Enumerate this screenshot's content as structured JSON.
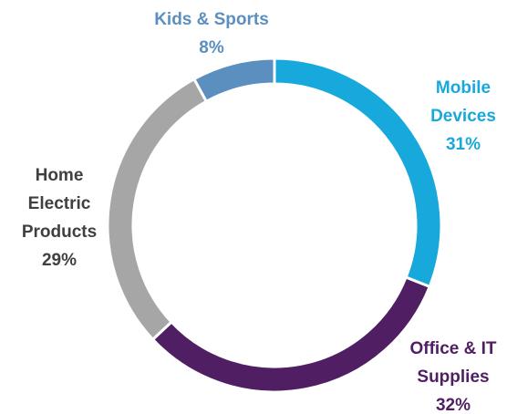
{
  "chart_data": {
    "type": "donut",
    "categories": [
      "Mobile Devices",
      "Office & IT Supplies",
      "Home Electric Products",
      "Kids & Sports"
    ],
    "values": [
      31,
      32,
      29,
      8
    ],
    "value_labels": [
      "31%",
      "32%",
      "29%",
      "8%"
    ],
    "colors": [
      "#18a9dc",
      "#4f1e63",
      "#a6a6a6",
      "#5b8fc0"
    ],
    "label_colors": [
      "#18a9dc",
      "#4f1e63",
      "#404040",
      "#5b8fc0"
    ]
  }
}
